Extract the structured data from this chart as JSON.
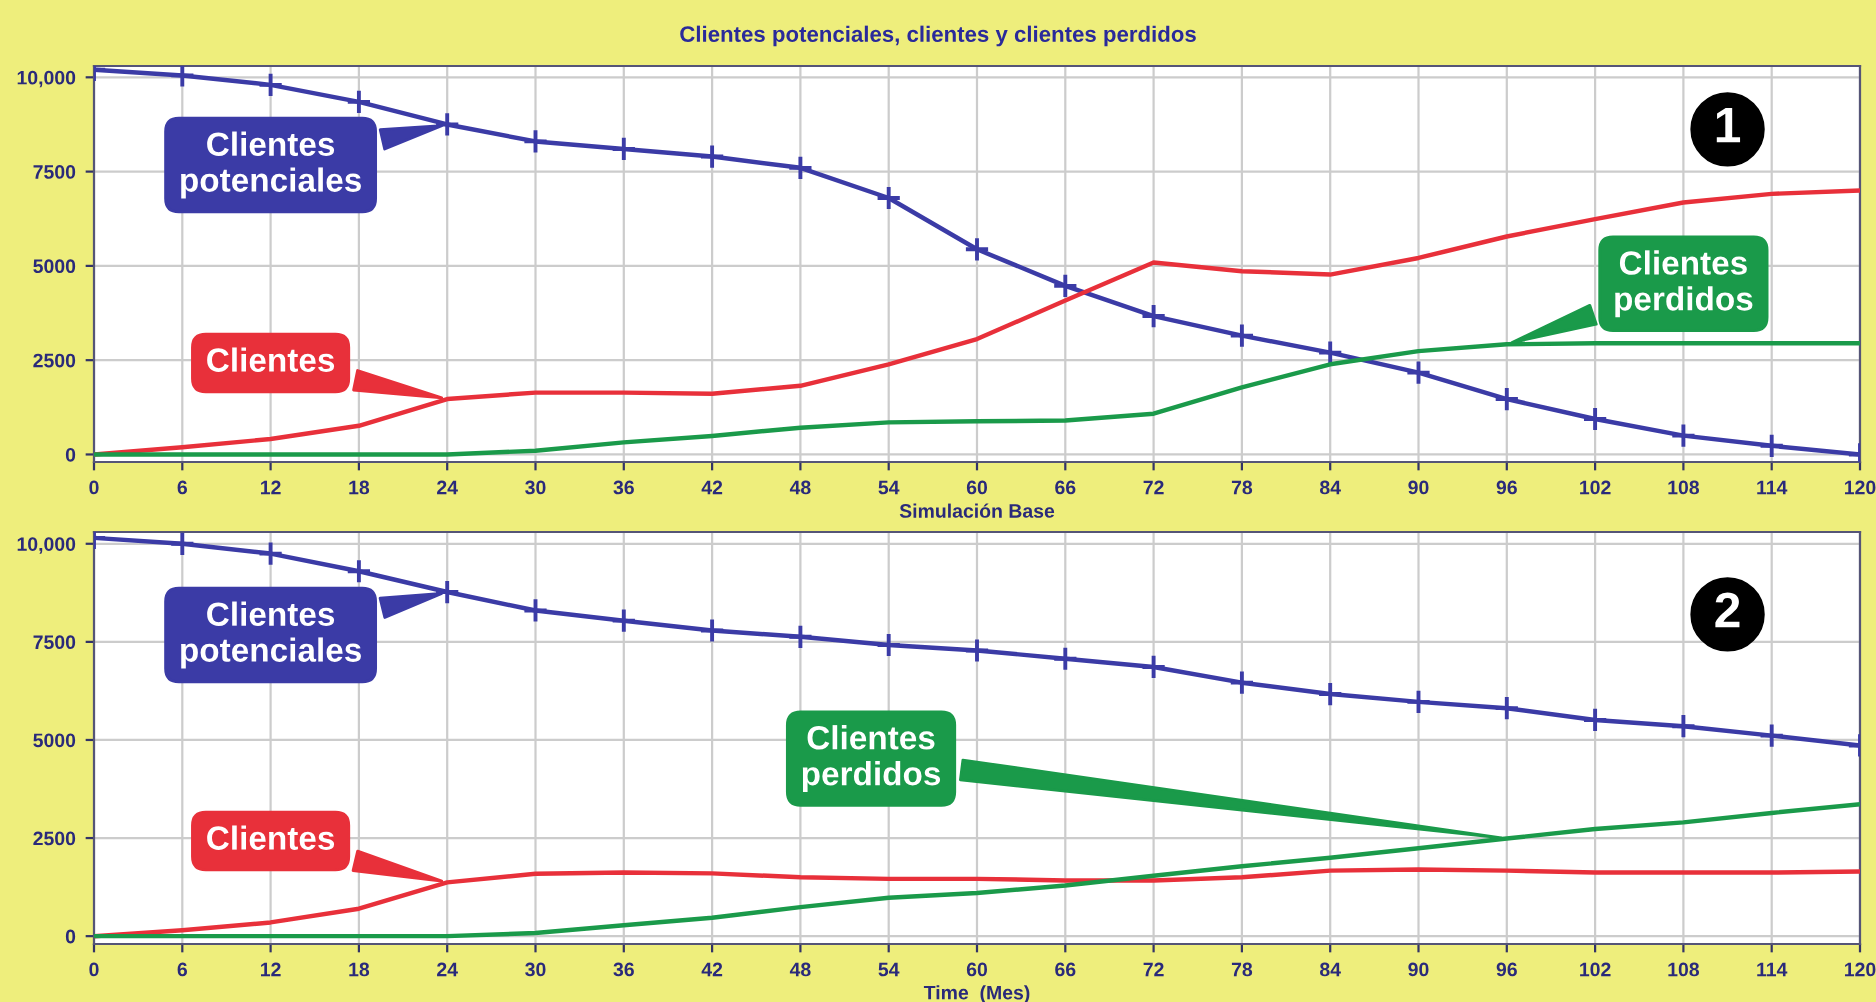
{
  "chart_data": [
    {
      "type": "line",
      "title": "Clientes potenciales, clientes y clientes perdidos",
      "xlabel": "Simulación Base",
      "annotations": [
        "1"
      ],
      "x": [
        0,
        6,
        12,
        18,
        24,
        30,
        36,
        42,
        48,
        54,
        60,
        66,
        72,
        78,
        84,
        90,
        96,
        102,
        108,
        114,
        120
      ],
      "xlim": [
        0,
        120
      ],
      "xticks": [
        0,
        6,
        12,
        18,
        24,
        30,
        36,
        42,
        48,
        54,
        60,
        66,
        72,
        78,
        84,
        90,
        96,
        102,
        108,
        114,
        120
      ],
      "ylim": [
        -200,
        10300
      ],
      "yticks": [
        0,
        2500,
        5000,
        7500,
        {
          "value": 10000,
          "label": "10,000"
        }
      ],
      "grid": true,
      "series": [
        {
          "name": "Clientes potenciales",
          "color": "#3b3ba6",
          "marker": "cross",
          "values": [
            10200,
            10050,
            9800,
            9350,
            8750,
            8300,
            8100,
            7900,
            7600,
            6800,
            5440,
            4470,
            3670,
            3150,
            2700,
            2170,
            1470,
            940,
            500,
            230,
            0
          ]
        },
        {
          "name": "Clientes",
          "color": "#e8303a",
          "values": [
            0,
            190,
            410,
            760,
            1470,
            1640,
            1640,
            1610,
            1820,
            2390,
            3060,
            4080,
            5090,
            4860,
            4770,
            5210,
            5780,
            6240,
            6680,
            6910,
            7000
          ]
        },
        {
          "name": "Clientes perdidos",
          "color": "#1a9a4a",
          "values": [
            0,
            0,
            0,
            0,
            0,
            100,
            320,
            490,
            710,
            850,
            880,
            900,
            1080,
            1780,
            2390,
            2740,
            2920,
            2950,
            2950,
            2950,
            2950
          ]
        }
      ]
    },
    {
      "type": "line",
      "xlabel": "Time  (Mes)",
      "annotations": [
        "2"
      ],
      "x": [
        0,
        6,
        12,
        18,
        24,
        30,
        36,
        42,
        48,
        54,
        60,
        66,
        72,
        78,
        84,
        90,
        96,
        102,
        108,
        114,
        120
      ],
      "xlim": [
        0,
        120
      ],
      "xticks": [
        0,
        6,
        12,
        18,
        24,
        30,
        36,
        42,
        48,
        54,
        60,
        66,
        72,
        78,
        84,
        90,
        96,
        102,
        108,
        114,
        120
      ],
      "ylim": [
        -200,
        10300
      ],
      "yticks": [
        0,
        2500,
        5000,
        7500,
        {
          "value": 10000,
          "label": "10,000"
        }
      ],
      "grid": true,
      "series": [
        {
          "name": "Clientes potenciales",
          "color": "#3b3ba6",
          "marker": "cross",
          "values": [
            10150,
            10000,
            9750,
            9300,
            8770,
            8300,
            8040,
            7790,
            7630,
            7420,
            7280,
            7070,
            6860,
            6460,
            6170,
            5970,
            5810,
            5510,
            5350,
            5110,
            4860
          ]
        },
        {
          "name": "Clientes",
          "color": "#e8303a",
          "values": [
            0,
            150,
            350,
            700,
            1370,
            1590,
            1620,
            1600,
            1500,
            1460,
            1460,
            1420,
            1420,
            1500,
            1670,
            1700,
            1670,
            1620,
            1620,
            1620,
            1650
          ]
        },
        {
          "name": "Clientes perdidos",
          "color": "#1a9a4a",
          "values": [
            0,
            0,
            0,
            0,
            0,
            80,
            280,
            470,
            740,
            980,
            1100,
            1290,
            1540,
            1780,
            2000,
            2240,
            2490,
            2730,
            2900,
            3140,
            3360
          ]
        }
      ]
    }
  ]
}
